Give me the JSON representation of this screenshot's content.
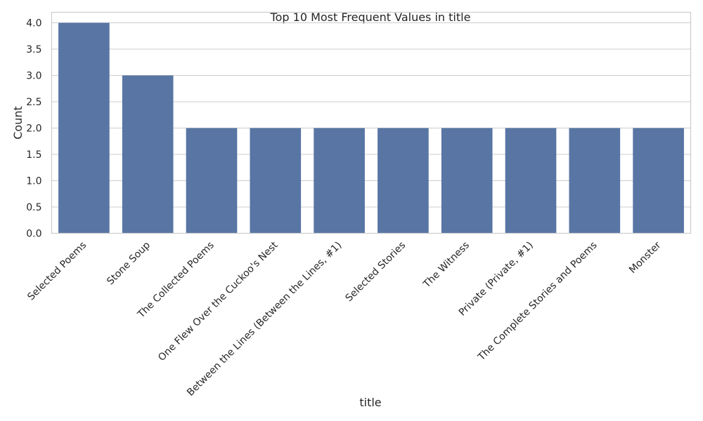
{
  "chart_data": {
    "type": "bar",
    "title": "Top 10 Most Frequent Values in title",
    "xlabel": "title",
    "ylabel": "Count",
    "categories": [
      "Selected Poems",
      "Stone Soup",
      "The Collected Poems",
      "One Flew Over the Cuckoo's Nest",
      "Between the Lines (Between the Lines, #1)",
      "Selected Stories",
      "The Witness",
      "Private (Private, #1)",
      "The Complete Stories and Poems",
      "Monster"
    ],
    "values": [
      4,
      3,
      2,
      2,
      2,
      2,
      2,
      2,
      2,
      2
    ],
    "ylim": [
      0,
      4.2
    ],
    "yticks": [
      "0.0",
      "0.5",
      "1.0",
      "1.5",
      "2.0",
      "2.5",
      "3.0",
      "3.5",
      "4.0"
    ],
    "grid": "horizontal",
    "bar_color": "#5875a4"
  }
}
